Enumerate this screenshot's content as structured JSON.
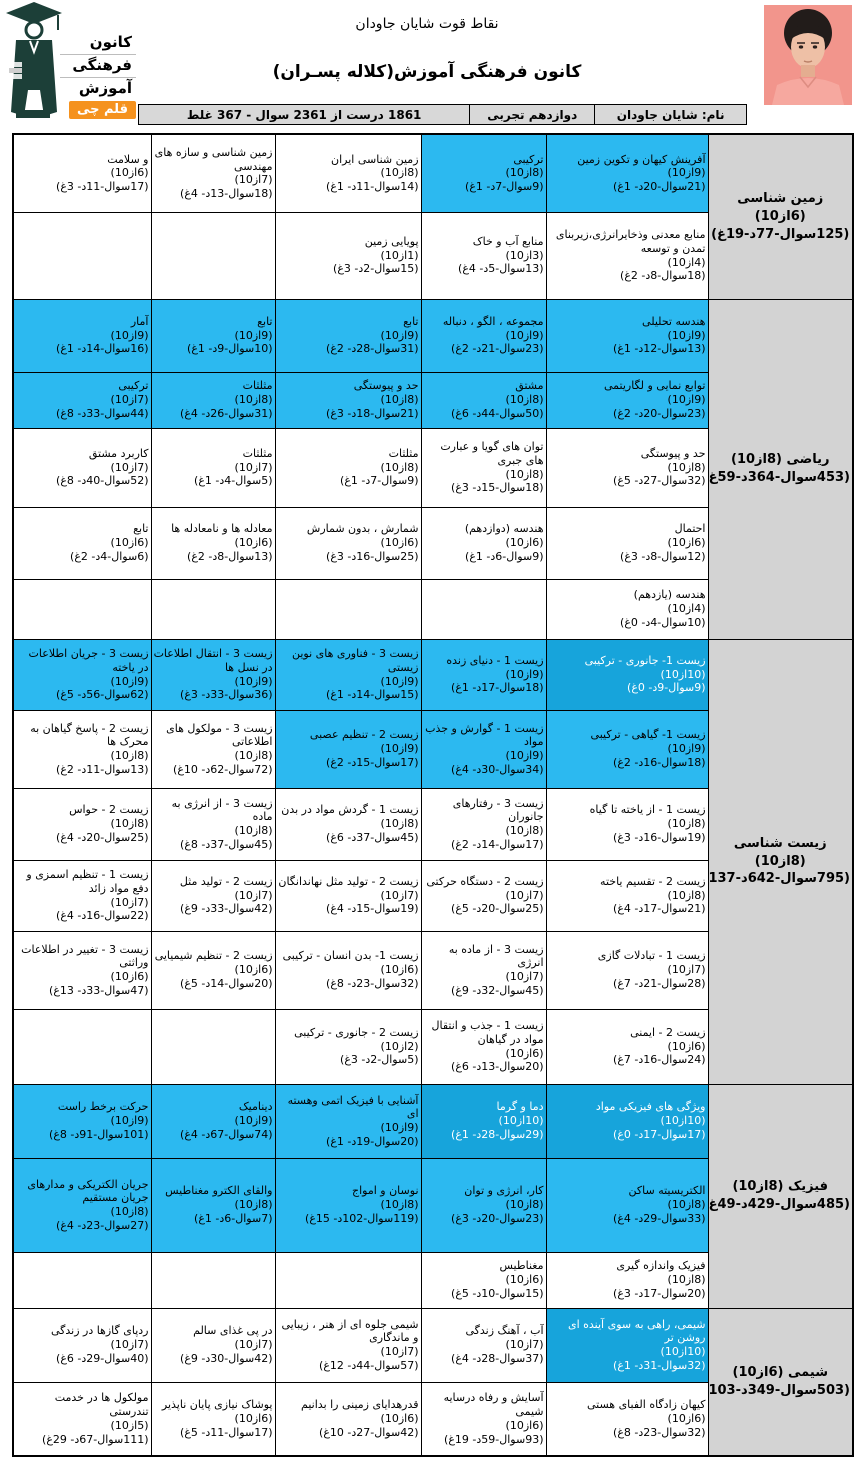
{
  "header": {
    "title": "نقاط قوت شایان جاودان",
    "subtitle": "کانون فرهنگی آموزش(کلاله پسـران)",
    "logo": {
      "words": [
        "کانون",
        "فرهنگی",
        "آموزش"
      ],
      "badge": "قلم چی"
    },
    "info": {
      "name": "نام: شایان جاودان",
      "grade": "دوازدهم تجربی",
      "result": "1861 درست از 2361 سوال - 367 غلط"
    }
  },
  "colors": {
    "highlight_blue": "#2cb9f0",
    "highlight_blue_dark": "#17a4db",
    "subject_gray": "#d3d3d3",
    "info_gray": "#d8d8d8",
    "badge_orange": "#f5921e",
    "photo_bg": "#f2958c",
    "border": "#000000"
  },
  "sections": [
    {
      "id": "zamin-shenasi",
      "title": "زمین شناسی (6از10)",
      "stats": "(125سوال-77د-19غ)",
      "rows": [
        [
          {
            "title": "آفرینش کیهان و تکوین زمین",
            "score": "(9از10)",
            "stats": "(21سوال-20د- 1غ)",
            "bg": "blue"
          },
          {
            "title": "ترکیبی",
            "score": "(8از10)",
            "stats": "(9سوال-7د- 1غ)",
            "bg": "blue"
          },
          {
            "title": "زمین شناسی ایران",
            "score": "(8از10)",
            "stats": "(14سوال-11د- 1غ)"
          },
          {
            "title": "زمین شناسی و سازه های مهندسی",
            "score": "(7از10)",
            "stats": "(18سوال-13د- 4غ)"
          },
          {
            "title": "و سلامت",
            "score": "(6از10)",
            "stats": "(17سوال-11د- 3غ)"
          }
        ],
        [
          {
            "title": "منابع معدنی وذخایرانرژی،زیربنای تمدن و توسعه",
            "score": "(4از10)",
            "stats": "(18سوال-8د- 2غ)"
          },
          {
            "title": "منابع آب و خاک",
            "score": "(3از10)",
            "stats": "(13سوال-5د- 4غ)"
          },
          {
            "title": "پویایی زمین",
            "score": "(1از10)",
            "stats": "(15سوال-2د- 3غ)"
          },
          null,
          null
        ]
      ]
    },
    {
      "id": "riazi",
      "title": "ریاضی (8از10)",
      "stats": "(453سوال-364د-59غ)",
      "rows": [
        [
          {
            "title": "هندسه تحلیلی",
            "score": "(9از10)",
            "stats": "(13سوال-12د- 1غ)",
            "bg": "blue"
          },
          {
            "title": "مجموعه ، الگو ، دنباله",
            "score": "(9از10)",
            "stats": "(23سوال-21د- 2غ)",
            "bg": "blue"
          },
          {
            "title": "تابع",
            "score": "(9از10)",
            "stats": "(31سوال-28د- 2غ)",
            "bg": "blue"
          },
          {
            "title": "تابع",
            "score": "(9از10)",
            "stats": "(10سوال-9د- 1غ)",
            "bg": "blue"
          },
          {
            "title": "آمار",
            "score": "(9از10)",
            "stats": "(16سوال-14د- 1غ)",
            "bg": "blue"
          }
        ],
        [
          {
            "title": "توابع نمایی و لگاریتمی",
            "score": "(9از10)",
            "stats": "(23سوال-20د- 2غ)",
            "bg": "blue"
          },
          {
            "title": "مشتق",
            "score": "(8از10)",
            "stats": "(50سوال-44د- 6غ)",
            "bg": "blue"
          },
          {
            "title": "حد و پیوستگی",
            "score": "(8از10)",
            "stats": "(21سوال-18د- 3غ)",
            "bg": "blue"
          },
          {
            "title": "مثلثات",
            "score": "(8از10)",
            "stats": "(31سوال-26د- 4غ)",
            "bg": "blue"
          },
          {
            "title": "ترکیبی",
            "score": "(7از10)",
            "stats": "(44سوال-33د- 8غ)",
            "bg": "blue"
          }
        ],
        [
          {
            "title": "حد و پیوستگی",
            "score": "(8از10)",
            "stats": "(32سوال-27د- 5غ)"
          },
          {
            "title": "توان های گویا و عبارت های جبری",
            "score": "(8از10)",
            "stats": "(18سوال-15د- 3غ)"
          },
          {
            "title": "مثلثات",
            "score": "(8از10)",
            "stats": "(9سوال-7د- 1غ)"
          },
          {
            "title": "مثلثات",
            "score": "(7از10)",
            "stats": "(5سوال-4د- 1غ)"
          },
          {
            "title": "کاربرد مشتق",
            "score": "(7از10)",
            "stats": "(52سوال-40د- 8غ)"
          }
        ],
        [
          {
            "title": "احتمال",
            "score": "(6از10)",
            "stats": "(12سوال-8د- 3غ)"
          },
          {
            "title": "هندسه (دوازدهم)",
            "score": "(6از10)",
            "stats": "(9سوال-6د- 1غ)"
          },
          {
            "title": "شمارش ، بدون شمارش",
            "score": "(6از10)",
            "stats": "(25سوال-16د- 3غ)"
          },
          {
            "title": "معادله ها و نامعادله ها",
            "score": "(6از10)",
            "stats": "(13سوال-8د- 2غ)"
          },
          {
            "title": "تابع",
            "score": "(6از10)",
            "stats": "(6سوال-4د- 2غ)"
          }
        ],
        [
          {
            "title": "هندسه (یازدهم)",
            "score": "(4از10)",
            "stats": "(10سوال-4د- 0غ)"
          },
          null,
          null,
          null,
          null
        ]
      ]
    },
    {
      "id": "zist-shenasi",
      "title": "زیست شناسی (8از10)",
      "stats": "(795سوال-642د-137غ)",
      "rows": [
        [
          {
            "title": "زیست 1- جانوری - ترکیبی",
            "score": "(10از10)",
            "stats": "(9سوال-9د- 0غ)",
            "bg": "dark"
          },
          {
            "title": "زیست 1 - دنیای زنده",
            "score": "(9از10)",
            "stats": "(18سوال-17د- 1غ)",
            "bg": "blue"
          },
          {
            "title": "زیست 3 - فناوری های نوین زیستی",
            "score": "(9از10)",
            "stats": "(15سوال-14د- 1غ)",
            "bg": "blue"
          },
          {
            "title": "زیست 3 - انتقال اطلاعات در نسل ها",
            "score": "(9از10)",
            "stats": "(36سوال-33د- 3غ)",
            "bg": "blue"
          },
          {
            "title": "زیست 3 - جریان اطلاعات در یاخته",
            "score": "(9از10)",
            "stats": "(62سوال-56د- 5غ)",
            "bg": "blue"
          }
        ],
        [
          {
            "title": "زیست 1- گیاهی - ترکیبی",
            "score": "(9از10)",
            "stats": "(18سوال-16د- 2غ)",
            "bg": "blue"
          },
          {
            "title": "زیست 1 - گوارش و جذب مواد",
            "score": "(9از10)",
            "stats": "(34سوال-30د- 4غ)",
            "bg": "blue"
          },
          {
            "title": "زیست 2 - تنظیم عصبی",
            "score": "(9از10)",
            "stats": "(17سوال-15د- 2غ)",
            "bg": "blue"
          },
          {
            "title": "زیست 3 - مولکول های اطلاعاتی",
            "score": "(8از10)",
            "stats": "(72سوال-62د- 10غ)"
          },
          {
            "title": "زیست 2 - پاسخ گیاهان به محرک ها",
            "score": "(8از10)",
            "stats": "(13سوال-11د- 2غ)"
          }
        ],
        [
          {
            "title": "زیست 1 - از یاخته تا گیاه",
            "score": "(8از10)",
            "stats": "(19سوال-16د- 3غ)"
          },
          {
            "title": "زیست 3 - رفتارهای جانوران",
            "score": "(8از10)",
            "stats": "(17سوال-14د- 2غ)"
          },
          {
            "title": "زیست 1 - گردش مواد در بدن",
            "score": "(8از10)",
            "stats": "(45سوال-37د- 6غ)"
          },
          {
            "title": "زیست 3 - از انرژی به ماده",
            "score": "(8از10)",
            "stats": "(45سوال-37د- 8غ)"
          },
          {
            "title": "زیست 2 - حواس",
            "score": "(8از10)",
            "stats": "(25سوال-20د- 4غ)"
          }
        ],
        [
          {
            "title": "زیست 2 - تقسیم یاخته",
            "score": "(8از10)",
            "stats": "(21سوال-17د- 4غ)"
          },
          {
            "title": "زیست 2 - دستگاه حرکتی",
            "score": "(7از10)",
            "stats": "(25سوال-20د- 5غ)"
          },
          {
            "title": "زیست 2 - تولید مثل نهاندانگان",
            "score": "(7از10)",
            "stats": "(19سوال-15د- 4غ)"
          },
          {
            "title": "زیست 2 - تولید مثل",
            "score": "(7از10)",
            "stats": "(42سوال-33د- 9غ)"
          },
          {
            "title": "زیست 1 - تنظیم اسمزی و دفع مواد زائد",
            "score": "(7از10)",
            "stats": "(22سوال-16د- 4غ)"
          }
        ],
        [
          {
            "title": "زیست 1 - تبادلات گازی",
            "score": "(7از10)",
            "stats": "(28سوال-21د- 7غ)"
          },
          {
            "title": "زیست 3 - از ماده به انرژی",
            "score": "(7از10)",
            "stats": "(45سوال-32د- 9غ)"
          },
          {
            "title": "زیست 1- بدن انسان - ترکیبی",
            "score": "(6از10)",
            "stats": "(32سوال-23د- 8غ)"
          },
          {
            "title": "زیست 2 - تنظیم شیمیایی",
            "score": "(6از10)",
            "stats": "(20سوال-14د- 5غ)"
          },
          {
            "title": "زیست 3 - تغییر در اطلاعات وراثتی",
            "score": "(6از10)",
            "stats": "(47سوال-33د- 13غ)"
          }
        ],
        [
          {
            "title": "زیست 2 - ایمنی",
            "score": "(6از10)",
            "stats": "(24سوال-16د- 7غ)"
          },
          {
            "title": "زیست 1 - جذب و انتقال مواد در گیاهان",
            "score": "(6از10)",
            "stats": "(20سوال-13د- 6غ)"
          },
          {
            "title": "زیست 2 - جانوری - ترکیبی",
            "score": "(2از10)",
            "stats": "(5سوال-2د- 3غ)"
          },
          null,
          null
        ]
      ]
    },
    {
      "id": "fizik",
      "title": "فیزیک (8از10)",
      "stats": "(485سوال-429د-49غ)",
      "rows": [
        [
          {
            "title": "ویژگی های فیزیکی مواد",
            "score": "(10از10)",
            "stats": "(17سوال-17د- 0غ)",
            "bg": "dark"
          },
          {
            "title": "دما و گرما",
            "score": "(10از10)",
            "stats": "(29سوال-28د- 1غ)",
            "bg": "dark"
          },
          {
            "title": "آشنایی با فیزیک اتمی وهسته ای",
            "score": "(9از10)",
            "stats": "(20سوال-19د- 1غ)",
            "bg": "blue"
          },
          {
            "title": "دینامیک",
            "score": "(9از10)",
            "stats": "(74سوال-67د- 4غ)",
            "bg": "blue"
          },
          {
            "title": "حرکت برخط راست",
            "score": "(9از10)",
            "stats": "(101سوال-91د- 8غ)",
            "bg": "blue"
          }
        ],
        [
          {
            "title": "الکتریسیته ساکن",
            "score": "(8از10)",
            "stats": "(33سوال-29د- 4غ)",
            "bg": "blue"
          },
          {
            "title": "کار، انرژی و توان",
            "score": "(8از10)",
            "stats": "(23سوال-20د- 3غ)",
            "bg": "blue"
          },
          {
            "title": "نوسان و امواج",
            "score": "(8از10)",
            "stats": "(119سوال-102د- 15غ)",
            "bg": "blue"
          },
          {
            "title": "والقای الکترو مغناطیس",
            "score": "(8از10)",
            "stats": "(7سوال-6د- 1غ)",
            "bg": "blue"
          },
          {
            "title": "جریان الکتریکی و مدارهای جریان مستقیم",
            "score": "(8از10)",
            "stats": "(27سوال-23د- 4غ)",
            "bg": "blue"
          }
        ],
        [
          {
            "title": "فیزیک واندازه گیری",
            "score": "(8از10)",
            "stats": "(20سوال-17د- 3غ)"
          },
          {
            "title": "مغناطیس",
            "score": "(6از10)",
            "stats": "(15سوال-10د- 5غ)"
          },
          null,
          null,
          null
        ]
      ]
    },
    {
      "id": "shimi",
      "title": "شیمی (6از10)",
      "stats": "(503سوال-349د-103غ)",
      "rows": [
        [
          {
            "title": "شیمی، راهی به سوی آینده ای روشن تر",
            "score": "(10از10)",
            "stats": "(32سوال-31د- 1غ)",
            "bg": "dark"
          },
          {
            "title": "آب ، آهنگ زندگی",
            "score": "(7از10)",
            "stats": "(37سوال-28د- 4غ)"
          },
          {
            "title": "شیمی جلوه ای از هنر ، زیبایی و ماندگاری",
            "score": "(7از10)",
            "stats": "(57سوال-44د- 12غ)"
          },
          {
            "title": "در پی غذای سالم",
            "score": "(7از10)",
            "stats": "(42سوال-30د- 9غ)"
          },
          {
            "title": "ردپای گازها در زندگی",
            "score": "(7از10)",
            "stats": "(40سوال-29د- 6غ)"
          }
        ],
        [
          {
            "title": "کیهان زادگاه الفبای هستی",
            "score": "(6از10)",
            "stats": "(32سوال-23د- 8غ)"
          },
          {
            "title": "آسایش و رفاه درسایه شیمی",
            "score": "(6از10)",
            "stats": "(93سوال-59د- 19غ)"
          },
          {
            "title": "قدرهدایای زمینی را بدانیم",
            "score": "(6از10)",
            "stats": "(42سوال-27د- 10غ)"
          },
          {
            "title": "پوشاک نیازی پایان ناپذیر",
            "score": "(6از10)",
            "stats": "(17سوال-11د- 5غ)"
          },
          {
            "title": "مولکول ها در خدمت تندرستی",
            "score": "(5از10)",
            "stats": "(111سوال-67د- 29غ)"
          }
        ]
      ]
    }
  ]
}
